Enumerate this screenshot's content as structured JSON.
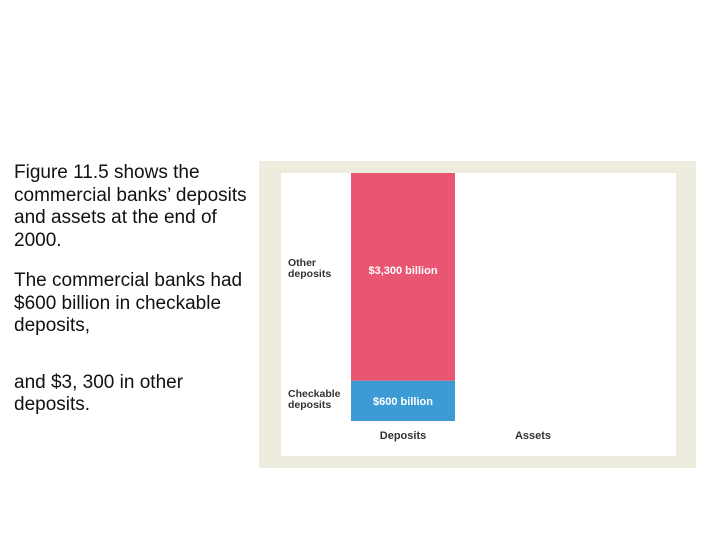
{
  "slide": {
    "paragraphs": [
      "Figure 11.5  shows the commercial banks’ deposits and assets at the end of 2000.",
      "The commercial banks had $600 billion in checkable deposits,",
      "and $3, 300 in other deposits."
    ]
  },
  "colors": {
    "other_deposits": "#e85671",
    "checkable_deposits": "#3c9bd4",
    "frame": "#eeebdf"
  },
  "chart_data": {
    "type": "bar",
    "stacked": true,
    "categories": [
      "Deposits",
      "Assets"
    ],
    "series": [
      {
        "name": "Checkable deposits",
        "values": [
          600,
          0
        ],
        "label": "$600 billion",
        "color": "#3c9bd4"
      },
      {
        "name": "Other deposits",
        "values": [
          3300,
          0
        ],
        "label": "$3,300 billion",
        "color": "#e85671"
      }
    ],
    "series_labels": [
      "Checkable\ndeposits",
      "Other\ndeposits"
    ],
    "ylim": [
      0,
      3900
    ],
    "grid": false,
    "title": "",
    "xlabel": "",
    "ylabel": ""
  }
}
